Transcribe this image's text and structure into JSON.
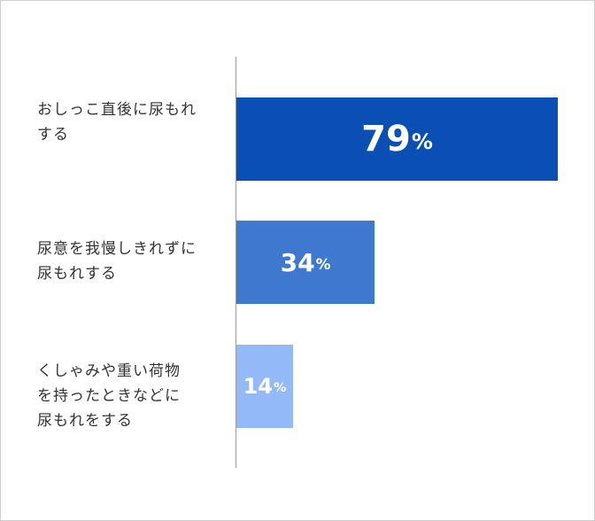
{
  "chart_data": {
    "type": "bar",
    "orientation": "horizontal",
    "categories": [
      [
        "おしっこ直後に尿もれ",
        "する"
      ],
      [
        "尿意を我慢しきれずに",
        "尿もれする"
      ],
      [
        "くしゃみや重い荷物",
        "を持ったときなどに",
        "尿もれをする"
      ]
    ],
    "values": [
      79,
      34,
      14
    ],
    "unit": "%",
    "xlim": [
      0,
      100
    ],
    "colors": [
      "#0a4fb4",
      "#3f79cf",
      "#93baf7"
    ],
    "value_font_sizes": [
      40,
      28,
      24
    ],
    "title": "",
    "xlabel": "",
    "ylabel": "",
    "grid": false,
    "legend": "none"
  }
}
